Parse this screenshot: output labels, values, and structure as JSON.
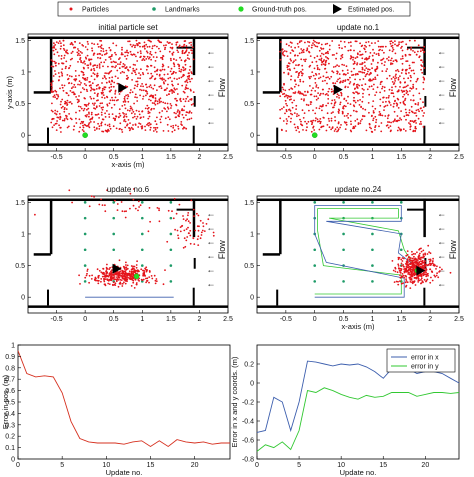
{
  "legend": {
    "particles": "Particles",
    "landmarks": "Landmarks",
    "ground_truth": "Ground-truth pos.",
    "estimated": "Estimated pos."
  },
  "flow_label": "Flow",
  "colors": {
    "particle": "#e4141b",
    "landmark": "#1e9b68",
    "ground_truth": "#22dd22",
    "estimate": "#000000",
    "walls": "#000000",
    "path_est": "#3d5fae",
    "path_gt": "#32c832",
    "error_line": "#d6301f"
  },
  "chart_data": [
    {
      "type": "scatter",
      "title": "initial particle set",
      "xlabel": "x-axis (m)",
      "ylabel": "y-axis (m)",
      "xlim": [
        -1,
        2.5
      ],
      "ylim": [
        -0.25,
        1.6
      ],
      "xticks": [
        "-0.5",
        "0",
        "0.5",
        "1",
        "1.5",
        "2",
        "2.5"
      ],
      "yticks": [
        "0",
        "0.5",
        "1",
        "1.5"
      ],
      "particle_region": {
        "x": [
          -0.6,
          1.9
        ],
        "y": [
          0.05,
          1.5
        ],
        "count": 1100
      },
      "estimated_pos": {
        "x": 0.65,
        "y": 0.75
      },
      "ground_truth_pos": {
        "x": 0.0,
        "y": 0.0
      },
      "grid": false
    },
    {
      "type": "scatter",
      "title": "update no.1",
      "xlabel": "",
      "ylabel": "",
      "xlim": [
        -1,
        2.5
      ],
      "ylim": [
        -0.25,
        1.6
      ],
      "xticks": [
        "-0.5",
        "0",
        "0.5",
        "1",
        "1.5",
        "2",
        "2.5"
      ],
      "yticks": [
        "0",
        "0.5",
        "1",
        "1.5"
      ],
      "particle_region": {
        "x": [
          -0.6,
          1.9
        ],
        "y": [
          0.05,
          1.5
        ],
        "count": 1000
      },
      "estimated_pos": {
        "x": 0.4,
        "y": 0.72
      },
      "ground_truth_pos": {
        "x": 0.0,
        "y": 0.0
      },
      "grid": false
    },
    {
      "type": "scatter",
      "title": "update no.6",
      "xlabel": "",
      "ylabel": "",
      "xlim": [
        -1,
        2.5
      ],
      "ylim": [
        -0.25,
        1.6
      ],
      "xticks": [
        "-0.5",
        "0",
        "0.5",
        "1",
        "1.5",
        "2",
        "2.5"
      ],
      "yticks": [
        "0",
        "0.5",
        "1",
        "1.5"
      ],
      "clusters": [
        {
          "cx": 0.65,
          "cy": 0.35,
          "sx": 0.28,
          "sy": 0.07,
          "count": 380
        },
        {
          "cx": 1.85,
          "cy": 1.08,
          "sx": 0.15,
          "sy": 0.15,
          "count": 55
        },
        {
          "cx": 0.75,
          "cy": 1.42,
          "sx": 0.55,
          "sy": 0.12,
          "count": 45
        }
      ],
      "landmarks_x": [
        0,
        0.5,
        1,
        1.5
      ],
      "landmarks_y": [
        0.25,
        0.5,
        0.75,
        1,
        1.25,
        1.5
      ],
      "path_est": [
        [
          0,
          0
        ],
        [
          1.55,
          0
        ]
      ],
      "estimated_pos": {
        "x": 0.55,
        "y": 0.45
      },
      "ground_truth_pos": {
        "x": 0.9,
        "y": 0.33
      },
      "grid": false
    },
    {
      "type": "scatter",
      "title": "update no.24",
      "xlabel": "x-axis (m)",
      "ylabel": "",
      "xlim": [
        -1,
        2.5
      ],
      "ylim": [
        -0.25,
        1.6
      ],
      "xticks": [
        "-0.5",
        "0",
        "0.5",
        "1",
        "1.5",
        "2",
        "2.5"
      ],
      "yticks": [
        "0",
        "0.5",
        "1",
        "1.5"
      ],
      "clusters": [
        {
          "cx": 1.75,
          "cy": 0.45,
          "sx": 0.17,
          "sy": 0.11,
          "count": 420
        }
      ],
      "landmarks_x": [
        0,
        0.5,
        1,
        1.5
      ],
      "landmarks_y": [
        0.25,
        0.5,
        0.75,
        1,
        1.25,
        1.5
      ],
      "path_est": [
        [
          0,
          0
        ],
        [
          1.55,
          0
        ],
        [
          1.55,
          0.3
        ],
        [
          0.2,
          0.55
        ],
        [
          0,
          1
        ],
        [
          0,
          1.45
        ],
        [
          1.5,
          1.45
        ],
        [
          1.5,
          1.2
        ],
        [
          0.2,
          1.2
        ],
        [
          1.5,
          1.0
        ],
        [
          1.45,
          0.7
        ],
        [
          1.8,
          0.45
        ]
      ],
      "path_gt": [
        [
          0,
          0.05
        ],
        [
          1.5,
          0.05
        ],
        [
          1.5,
          0.35
        ],
        [
          0.15,
          0.5
        ],
        [
          0.05,
          1.05
        ],
        [
          0.05,
          1.4
        ],
        [
          1.45,
          1.4
        ],
        [
          1.45,
          1.25
        ],
        [
          0.25,
          1.25
        ],
        [
          1.45,
          1.05
        ],
        [
          1.55,
          0.75
        ],
        [
          1.78,
          0.42
        ]
      ],
      "estimated_pos": {
        "x": 1.83,
        "y": 0.42
      },
      "ground_truth_pos": {
        "x": 1.78,
        "y": 0.42
      },
      "grid": false
    },
    {
      "type": "line",
      "title": "",
      "xlabel": "Update no.",
      "ylabel": "Error in pos. (m)",
      "xlim": [
        0,
        24
      ],
      "ylim": [
        0,
        1
      ],
      "xticks": [
        "0",
        "5",
        "10",
        "15",
        "20"
      ],
      "yticks": [
        "0",
        "0.1",
        "0.2",
        "0.3",
        "0.4",
        "0.5",
        "0.6",
        "0.7",
        "0.8",
        "0.9",
        "1"
      ],
      "x": [
        0,
        1,
        2,
        3,
        4,
        5,
        6,
        7,
        8,
        9,
        10,
        11,
        12,
        13,
        14,
        15,
        16,
        17,
        18,
        19,
        20,
        21,
        22,
        23,
        24
      ],
      "series": [
        {
          "values": [
            0.95,
            0.75,
            0.72,
            0.73,
            0.72,
            0.58,
            0.33,
            0.18,
            0.15,
            0.14,
            0.14,
            0.14,
            0.13,
            0.15,
            0.16,
            0.11,
            0.16,
            0.11,
            0.17,
            0.15,
            0.14,
            0.15,
            0.13,
            0.14,
            0.14
          ]
        }
      ],
      "grid": false
    },
    {
      "type": "line",
      "title": "",
      "xlabel": "Update no.",
      "ylabel": "Error in x and y coords. (m)",
      "xlim": [
        0,
        24
      ],
      "ylim": [
        -0.8,
        0.4
      ],
      "xticks": [
        "0",
        "5",
        "10",
        "15",
        "20"
      ],
      "yticks": [
        "-0.8",
        "-0.6",
        "-0.4",
        "-0.2",
        "0",
        "0.2"
      ],
      "x": [
        0,
        1,
        2,
        3,
        4,
        5,
        6,
        7,
        8,
        9,
        10,
        11,
        12,
        13,
        14,
        15,
        16,
        17,
        18,
        19,
        20,
        21,
        22,
        23,
        24
      ],
      "series": [
        {
          "name": "error in x",
          "values": [
            -0.52,
            -0.5,
            -0.15,
            -0.2,
            -0.5,
            -0.2,
            0.23,
            0.22,
            0.2,
            0.18,
            0.2,
            0.19,
            0.2,
            0.17,
            0.12,
            0.05,
            0.15,
            0.12,
            0.15,
            0.1,
            0.12,
            0.12,
            0.1,
            0.05,
            0.0
          ]
        },
        {
          "name": "error in y",
          "values": [
            -0.72,
            -0.65,
            -0.68,
            -0.62,
            -0.7,
            -0.5,
            -0.08,
            -0.1,
            -0.05,
            -0.08,
            -0.12,
            -0.15,
            -0.17,
            -0.13,
            -0.15,
            -0.14,
            -0.1,
            -0.1,
            -0.1,
            -0.14,
            -0.12,
            -0.1,
            -0.1,
            -0.11,
            -0.1
          ]
        }
      ],
      "legend_position": "top-right",
      "grid": false
    }
  ]
}
